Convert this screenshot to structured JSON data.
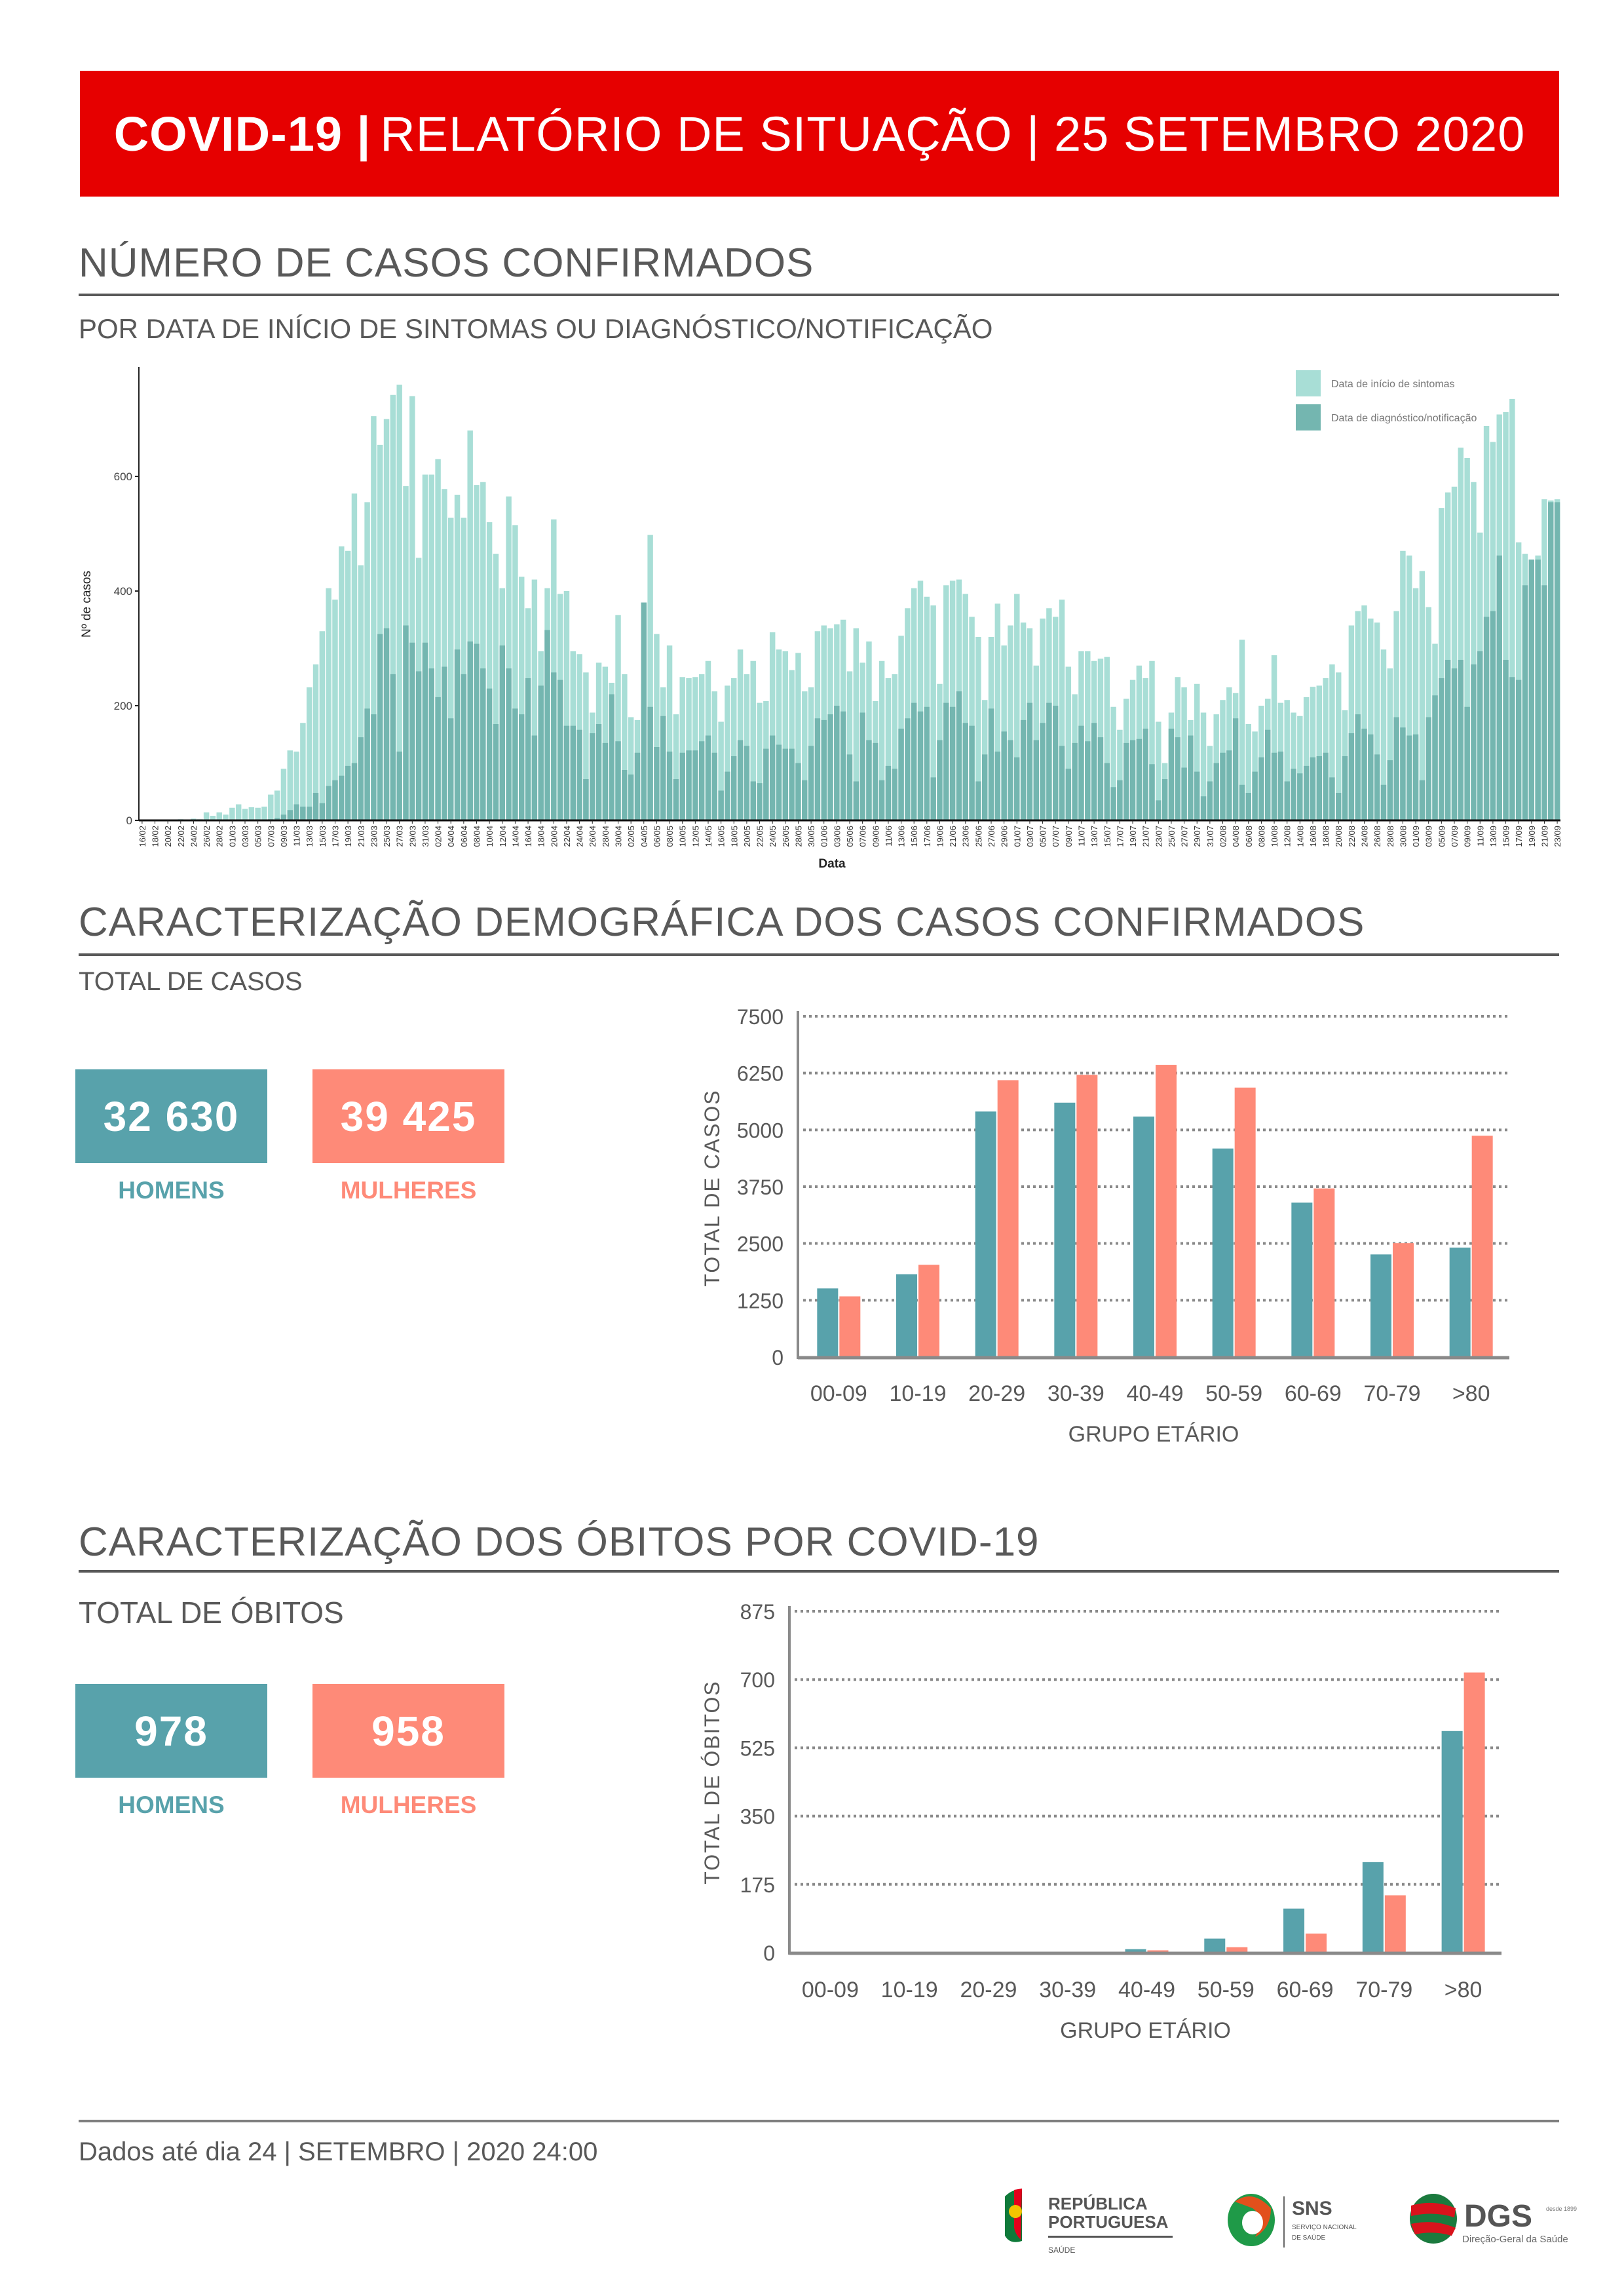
{
  "header": {
    "title_bold": "COVID-19 |",
    "title_rest": "RELATÓRIO DE SITUAÇÃO | 25 SETEMBRO 2020"
  },
  "colors": {
    "header": "#e60000",
    "men": "#58a2ab",
    "women": "#fe8a78",
    "symptoms": "#a8ded6",
    "diagnosis": "#74b6b0"
  },
  "section1": {
    "title": "NÚMERO DE CASOS CONFIRMADOS",
    "subtitle": "POR DATA DE INÍCIO DE SINTOMAS OU DIAGNÓSTICO/NOTIFICAÇÃO"
  },
  "section2": {
    "title": "CARACTERIZAÇÃO DEMOGRÁFICA DOS CASOS CONFIRMADOS",
    "subtitle": "TOTAL DE CASOS",
    "men_total": "32 630",
    "women_total": "39 425",
    "men_label": "HOMENS",
    "women_label": "MULHERES"
  },
  "section3": {
    "title": "CARACTERIZAÇÃO DOS ÓBITOS POR COVID-19",
    "subtitle": "TOTAL DE ÓBITOS",
    "men_total": "978",
    "women_total": "958",
    "men_label": "HOMENS",
    "women_label": "MULHERES"
  },
  "footer": {
    "text": "Dados até dia 24 | SETEMBRO | 2020 24:00"
  },
  "logos": {
    "republica": [
      "REPÚBLICA",
      "PORTUGUESA",
      "SAÚDE"
    ],
    "sns": [
      "SNS",
      "SERVIÇO NACIONAL",
      "DE SAÚDE"
    ],
    "dgs": [
      "DGS",
      "desde 1899",
      "Direção-Geral da Saúde"
    ]
  },
  "chart_data": [
    {
      "type": "bar",
      "title": "",
      "xlabel": "Data",
      "ylabel": "Nº de casos",
      "ylim": [
        0,
        780
      ],
      "yticks": [
        "0",
        "200",
        "400",
        "600"
      ],
      "ytick_values": [
        0,
        200,
        400,
        600
      ],
      "legend": {
        "placement": "top-right",
        "entries": [
          "Data de início de sintomas",
          "Data de diagnóstico/notificação"
        ]
      },
      "start_date": "16/02/2020",
      "end_date": "23/09/2020",
      "x_labels": [
        "16/02",
        "18/02",
        "20/02",
        "22/02",
        "24/02",
        "26/02",
        "28/02",
        "01/03",
        "03/03",
        "05/03",
        "07/03",
        "09/03",
        "11/03",
        "13/03",
        "15/03",
        "17/03",
        "19/03",
        "21/03",
        "23/03",
        "25/03",
        "27/03",
        "29/03",
        "31/03",
        "02/04",
        "04/04",
        "06/04",
        "08/04",
        "10/04",
        "12/04",
        "14/04",
        "16/04",
        "18/04",
        "20/04",
        "22/04",
        "24/04",
        "26/04",
        "28/04",
        "30/04",
        "02/05",
        "04/05",
        "06/05",
        "08/05",
        "10/05",
        "12/05",
        "14/05",
        "16/05",
        "18/05",
        "20/05",
        "22/05",
        "24/05",
        "26/05",
        "28/05",
        "30/05",
        "01/06",
        "03/06",
        "05/06",
        "07/06",
        "09/06",
        "11/06",
        "13/06",
        "15/06",
        "17/06",
        "19/06",
        "21/06",
        "23/06",
        "25/06",
        "27/06",
        "29/06",
        "01/07",
        "03/07",
        "05/07",
        "07/07",
        "09/07",
        "11/07",
        "13/07",
        "15/07",
        "17/07",
        "19/07",
        "21/07",
        "23/07",
        "25/07",
        "27/07",
        "29/07",
        "31/07",
        "02/08",
        "04/08",
        "06/08",
        "08/08",
        "10/08",
        "12/08",
        "14/08",
        "16/08",
        "18/08",
        "20/08",
        "22/08",
        "24/08",
        "26/08",
        "28/08",
        "30/08",
        "01/09",
        "03/09",
        "05/09",
        "07/09",
        "09/09",
        "11/09",
        "13/09",
        "15/09",
        "17/09",
        "19/09",
        "21/09",
        "23/09"
      ],
      "series": [
        {
          "name": "Data de início de sintomas",
          "values": [
            0,
            0,
            0,
            0,
            1,
            1,
            2,
            1,
            3,
            2,
            14,
            8,
            14,
            10,
            22,
            28,
            20,
            23,
            22,
            24,
            45,
            52,
            90,
            122,
            120,
            170,
            232,
            272,
            330,
            405,
            385,
            478,
            470,
            570,
            445,
            555,
            705,
            655,
            700,
            742,
            760,
            583,
            740,
            458,
            603,
            603,
            630,
            578,
            528,
            568,
            528,
            680,
            585,
            590,
            520,
            465,
            405,
            565,
            515,
            425,
            370,
            420,
            295,
            405,
            525,
            395,
            400,
            295,
            290,
            258,
            188,
            275,
            268,
            240,
            358,
            255,
            180,
            175,
            238,
            498,
            325,
            232,
            305,
            185,
            250,
            248,
            250,
            255,
            278,
            225,
            172,
            235,
            248,
            298,
            255,
            278,
            205,
            208,
            328,
            298,
            295,
            262,
            292,
            225,
            232,
            330,
            340,
            335,
            342,
            350,
            260,
            335,
            275,
            312,
            208,
            278,
            248,
            255,
            322,
            370,
            405,
            418,
            390,
            375,
            238,
            410,
            418,
            420,
            395,
            355,
            320,
            210,
            320,
            378,
            305,
            340,
            395,
            345,
            335,
            270,
            352,
            370,
            355,
            385,
            268,
            220,
            295,
            295,
            278,
            282,
            285,
            198,
            158,
            212,
            245,
            270,
            248,
            278,
            172,
            100,
            188,
            250,
            232,
            175,
            238,
            188,
            130,
            185,
            210,
            232,
            222,
            315,
            168,
            155,
            200,
            212,
            288,
            205,
            210,
            188,
            182,
            215,
            233,
            235,
            248,
            272,
            258,
            192,
            340,
            365,
            375,
            352,
            345,
            298,
            265,
            365,
            470,
            462,
            405,
            435,
            372,
            308,
            545,
            572,
            582,
            650,
            632,
            590,
            502,
            688,
            660,
            708,
            712,
            735,
            485,
            465,
            418,
            462,
            560,
            558,
            560
          ]
        },
        {
          "name": "Data de diagnóstico/notificação",
          "values": [
            0,
            0,
            0,
            0,
            0,
            0,
            0,
            0,
            0,
            0,
            0,
            0,
            0,
            0,
            0,
            0,
            0,
            0,
            0,
            1,
            2,
            4,
            10,
            18,
            28,
            24,
            24,
            48,
            30,
            60,
            70,
            78,
            95,
            100,
            145,
            195,
            185,
            325,
            335,
            255,
            120,
            340,
            310,
            260,
            310,
            265,
            215,
            268,
            178,
            298,
            255,
            312,
            308,
            265,
            230,
            168,
            305,
            265,
            195,
            185,
            248,
            148,
            235,
            332,
            258,
            245,
            165,
            165,
            158,
            72,
            152,
            168,
            135,
            220,
            138,
            88,
            80,
            118,
            380,
            198,
            128,
            182,
            120,
            72,
            118,
            122,
            122,
            138,
            148,
            118,
            52,
            85,
            112,
            140,
            130,
            68,
            65,
            125,
            148,
            132,
            125,
            125,
            100,
            70,
            130,
            178,
            175,
            185,
            200,
            190,
            115,
            68,
            188,
            140,
            135,
            70,
            95,
            90,
            160,
            178,
            205,
            190,
            198,
            75,
            140,
            205,
            198,
            225,
            170,
            165,
            68,
            115,
            195,
            120,
            155,
            140,
            110,
            175,
            205,
            140,
            170,
            205,
            200,
            130,
            90,
            135,
            165,
            138,
            170,
            145,
            100,
            58,
            70,
            135,
            140,
            142,
            160,
            98,
            35,
            72,
            160,
            145,
            92,
            148,
            85,
            42,
            68,
            100,
            118,
            122,
            178,
            62,
            48,
            85,
            110,
            158,
            118,
            120,
            68,
            90,
            82,
            95,
            110,
            112,
            118,
            75,
            48,
            112,
            152,
            185,
            160,
            150,
            115,
            62,
            105,
            180,
            162,
            148,
            150,
            70,
            180,
            218,
            248,
            280,
            265,
            280,
            198,
            272,
            295,
            355,
            365,
            462,
            280,
            250,
            245,
            410,
            455,
            455,
            410,
            555,
            555
          ]
        }
      ]
    },
    {
      "type": "bar",
      "title": "",
      "xlabel": "GRUPO ETÁRIO",
      "ylabel": "TOTAL DE CASOS",
      "ylim": [
        0,
        7500
      ],
      "yticks": [
        "0",
        "1250",
        "2500",
        "3750",
        "5000",
        "6250",
        "7500"
      ],
      "grid": true,
      "categories": [
        "00-09",
        "10-19",
        "20-29",
        "30-39",
        "40-49",
        "50-59",
        "60-69",
        "70-79",
        ">80"
      ],
      "series": [
        {
          "name": "Homens",
          "values": [
            1510,
            1823,
            5404,
            5599,
            5293,
            4590,
            3398,
            2259,
            2409
          ]
        },
        {
          "name": "Mulheres",
          "values": [
            1335,
            2031,
            6094,
            6211,
            6432,
            5931,
            3711,
            2507,
            4870
          ]
        }
      ]
    },
    {
      "type": "bar",
      "title": "",
      "xlabel": "GRUPO ETÁRIO",
      "ylabel": "TOTAL DE ÓBITOS",
      "ylim": [
        0,
        875
      ],
      "yticks": [
        "0",
        "175",
        "350",
        "525",
        "700",
        "875"
      ],
      "grid": true,
      "categories": [
        "00-09",
        "10-19",
        "20-29",
        "30-39",
        "40-49",
        "50-59",
        "60-69",
        "70-79",
        ">80"
      ],
      "series": [
        {
          "name": "Homens",
          "values": [
            0,
            0,
            0,
            1,
            9,
            36,
            113,
            232,
            568
          ]
        },
        {
          "name": "Mulheres",
          "values": [
            0,
            0,
            0,
            1,
            6,
            14,
            49,
            147,
            718
          ]
        }
      ]
    }
  ]
}
